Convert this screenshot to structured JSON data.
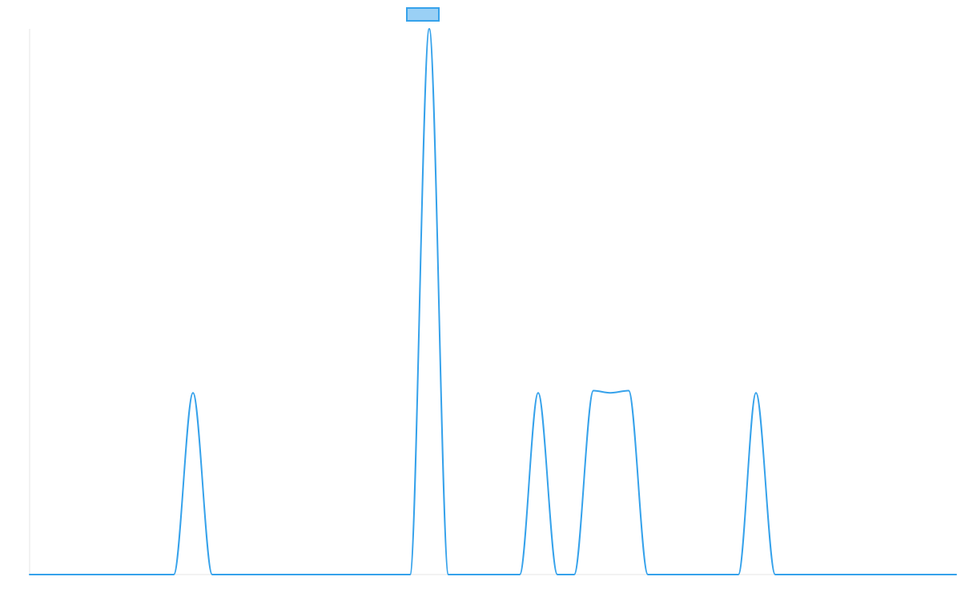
{
  "chart_data": {
    "type": "line",
    "title": "",
    "xlabel": "",
    "ylabel": "",
    "grid": false,
    "legend": "top-center",
    "xlim": [
      0,
      1157
    ],
    "ylim": [
      0,
      1
    ],
    "series": [
      {
        "color": "#36a2eb",
        "fill_color": "#9ad0f5",
        "points": [
          [
            0,
            0
          ],
          [
            180,
            0
          ],
          [
            204,
            0.333
          ],
          [
            228,
            0
          ],
          [
            475,
            0
          ],
          [
            499,
            1
          ],
          [
            523,
            0
          ],
          [
            612,
            0
          ],
          [
            635,
            0.333
          ],
          [
            659,
            0
          ],
          [
            680,
            0
          ],
          [
            704,
            0.337
          ],
          [
            725,
            0.333
          ],
          [
            748,
            0.337
          ],
          [
            772,
            0
          ],
          [
            885,
            0
          ],
          [
            907,
            0.333
          ],
          [
            931,
            0
          ],
          [
            1157,
            0
          ]
        ]
      }
    ]
  }
}
